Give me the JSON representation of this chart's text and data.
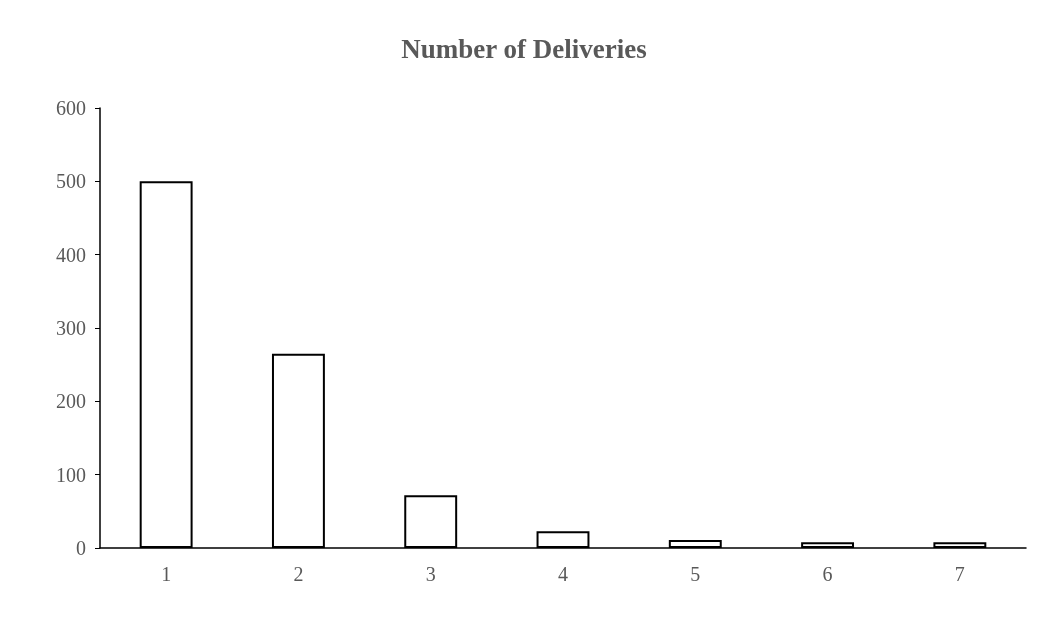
{
  "chart_data": {
    "type": "bar",
    "title": "Number of Deliveries",
    "categories": [
      "1",
      "2",
      "3",
      "4",
      "5",
      "6",
      "7"
    ],
    "values": [
      500,
      265,
      72,
      23,
      11,
      8,
      8
    ],
    "color": "#ffffff",
    "ylim": [
      0,
      600
    ],
    "yticks": [
      0,
      100,
      200,
      300,
      400,
      500,
      600
    ],
    "grid": false
  }
}
